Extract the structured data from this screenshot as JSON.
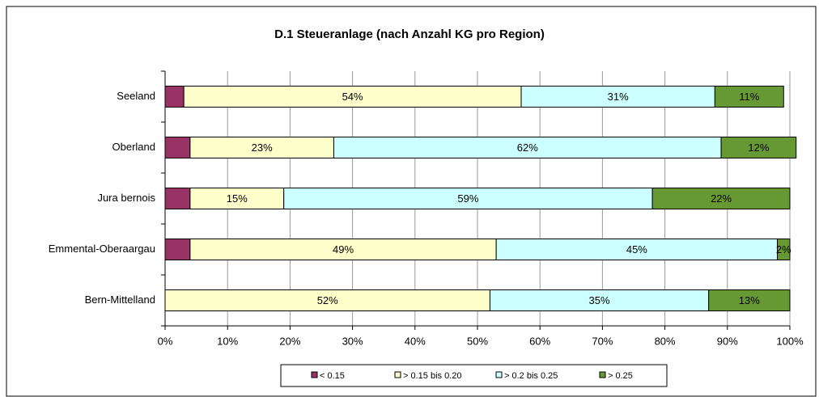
{
  "chart_data": {
    "type": "stacked_barh",
    "title": "D.1 Steueranlage (nach Anzahl KG pro Region)",
    "categories": [
      "Seeland",
      "Oberland",
      "Jura bernois",
      "Emmental-Oberaargau",
      "Bern-Mittelland"
    ],
    "series": [
      {
        "name": "< 0.15",
        "color": "#993366",
        "values": [
          3,
          4,
          4,
          4,
          0
        ]
      },
      {
        "name": "> 0.15 bis 0.20",
        "color": "#ffffcc",
        "values": [
          54,
          23,
          15,
          49,
          52
        ],
        "value_labels": [
          "54%",
          "23%",
          "15%",
          "49%",
          "52%"
        ]
      },
      {
        "name": "> 0.2 bis 0.25",
        "color": "#ccffff",
        "values": [
          31,
          62,
          59,
          45,
          35
        ],
        "value_labels": [
          "31%",
          "62%",
          "59%",
          "45%",
          "35%"
        ]
      },
      {
        "name": "> 0.25",
        "color": "#669933",
        "values": [
          11,
          12,
          22,
          2,
          13
        ],
        "value_labels": [
          "11%",
          "12%",
          "22%",
          "2%",
          "13%"
        ]
      }
    ],
    "xlim": [
      0,
      100
    ],
    "xticks": [
      {
        "value": 0,
        "label": "0%"
      },
      {
        "value": 10,
        "label": "10%"
      },
      {
        "value": 20,
        "label": "20%"
      },
      {
        "value": 30,
        "label": "30%"
      },
      {
        "value": 40,
        "label": "40%"
      },
      {
        "value": 50,
        "label": "50%"
      },
      {
        "value": 60,
        "label": "60%"
      },
      {
        "value": 70,
        "label": "70%"
      },
      {
        "value": 80,
        "label": "80%"
      },
      {
        "value": 90,
        "label": "90%"
      },
      {
        "value": 100,
        "label": "100%"
      }
    ],
    "grid": true,
    "legend": "bottom"
  }
}
